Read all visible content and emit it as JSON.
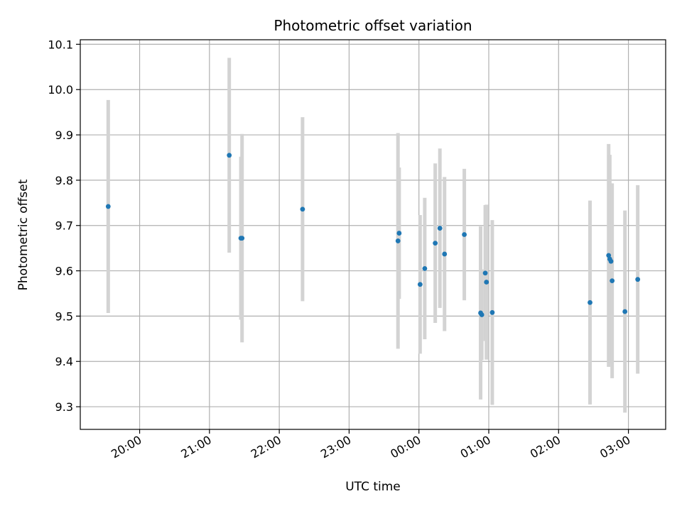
{
  "chart_data": {
    "type": "scatter",
    "title": "Photometric offset variation",
    "xlabel": "UTC time",
    "ylabel": "Photometric offset",
    "xlim": [
      "19:09",
      "03:32"
    ],
    "ylim": [
      9.25,
      10.11
    ],
    "x_ticks": [
      "20:00",
      "21:00",
      "22:00",
      "23:00",
      "00:00",
      "01:00",
      "02:00",
      "03:00"
    ],
    "y_ticks": [
      9.3,
      9.4,
      9.5,
      9.6,
      9.7,
      9.8,
      9.9,
      10.0,
      10.1
    ],
    "grid": true,
    "point_color": "#1f77b4",
    "errorbar_color": "#d3d3d3",
    "series": [
      {
        "points": [
          {
            "x": "19:33",
            "y": 9.742,
            "yerr": 0.235
          },
          {
            "x": "21:17",
            "y": 9.855,
            "yerr": 0.215
          },
          {
            "x": "21:27",
            "y": 9.672,
            "yerr": 0.18
          },
          {
            "x": "21:28",
            "y": 9.672,
            "yerr": 0.23
          },
          {
            "x": "22:20",
            "y": 9.736,
            "yerr": 0.203
          },
          {
            "x": "23:42",
            "y": 9.666,
            "yerr": 0.238
          },
          {
            "x": "23:43",
            "y": 9.683,
            "yerr": 0.145
          },
          {
            "x": "00:01",
            "y": 9.57,
            "yerr": 0.153
          },
          {
            "x": "00:05",
            "y": 9.605,
            "yerr": 0.156
          },
          {
            "x": "00:14",
            "y": 9.661,
            "yerr": 0.176
          },
          {
            "x": "00:18",
            "y": 9.694,
            "yerr": 0.176
          },
          {
            "x": "00:22",
            "y": 9.637,
            "yerr": 0.17
          },
          {
            "x": "00:39",
            "y": 9.68,
            "yerr": 0.145
          },
          {
            "x": "00:53",
            "y": 9.507,
            "yerr": 0.191
          },
          {
            "x": "00:54",
            "y": 9.503,
            "yerr": 0.1
          },
          {
            "x": "00:57",
            "y": 9.595,
            "yerr": 0.15
          },
          {
            "x": "00:58",
            "y": 9.575,
            "yerr": 0.171
          },
          {
            "x": "01:03",
            "y": 9.508,
            "yerr": 0.204
          },
          {
            "x": "02:27",
            "y": 9.53,
            "yerr": 0.225
          },
          {
            "x": "02:43",
            "y": 9.634,
            "yerr": 0.246
          },
          {
            "x": "02:44",
            "y": 9.626,
            "yerr": 0.23
          },
          {
            "x": "02:45",
            "y": 9.621,
            "yerr": 0.172
          },
          {
            "x": "02:46",
            "y": 9.578,
            "yerr": 0.215
          },
          {
            "x": "02:57",
            "y": 9.51,
            "yerr": 0.223
          },
          {
            "x": "03:08",
            "y": 9.581,
            "yerr": 0.208
          }
        ]
      }
    ]
  }
}
